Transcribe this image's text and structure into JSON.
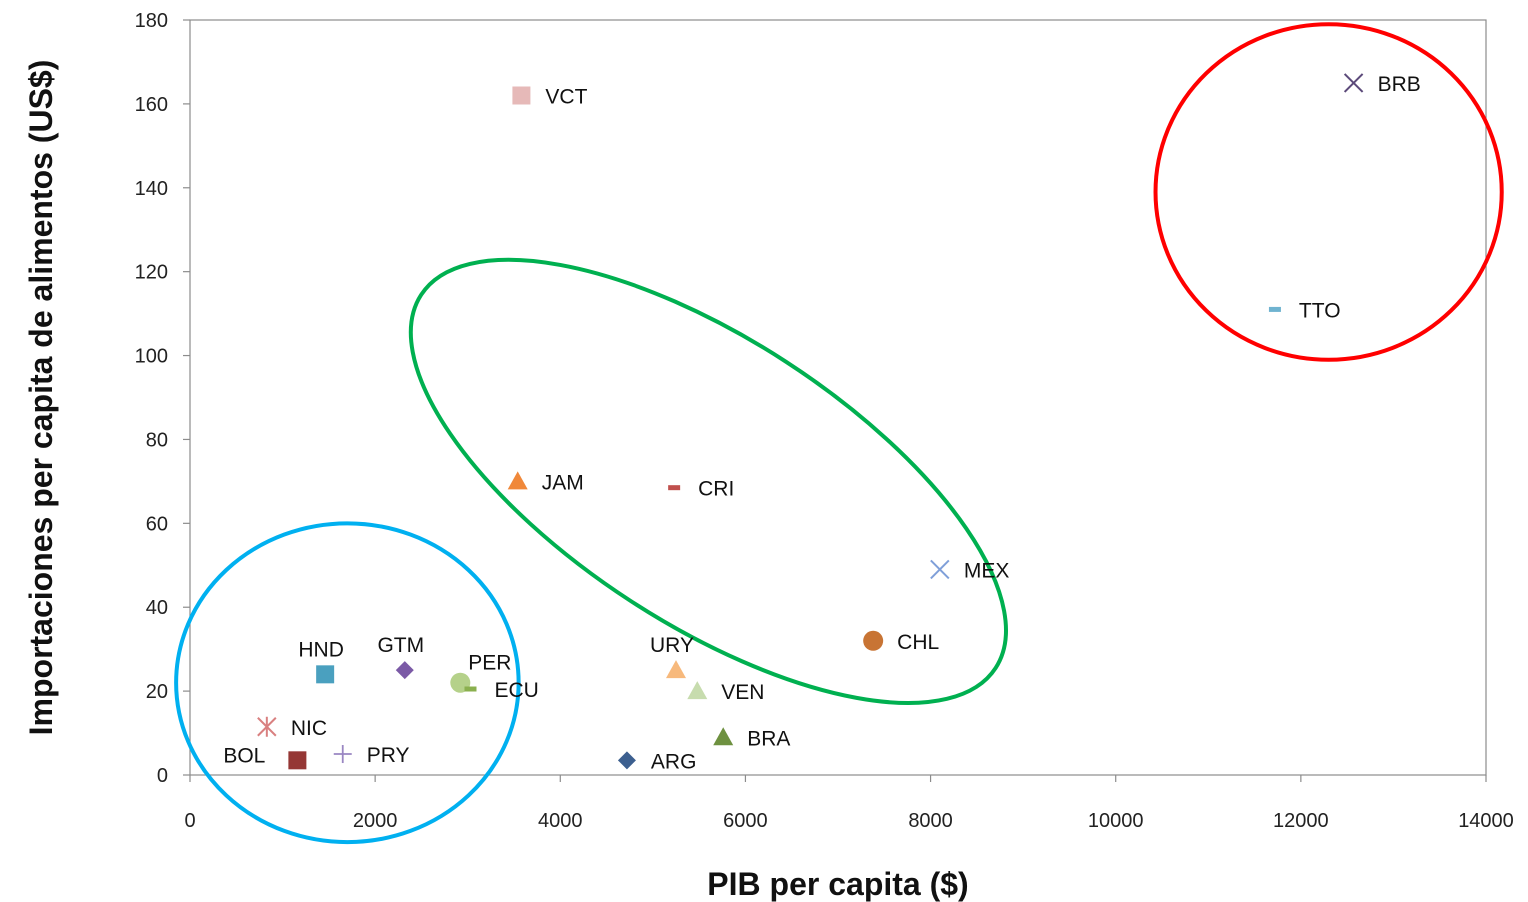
{
  "chart_data": {
    "type": "scatter",
    "xlabel": "PIB per capita ($)",
    "ylabel": "Importaciones per capita de alimentos (US$)",
    "xlim": [
      0,
      14000
    ],
    "ylim": [
      0,
      180
    ],
    "xticks": [
      0,
      2000,
      4000,
      6000,
      8000,
      10000,
      12000,
      14000
    ],
    "yticks": [
      0,
      20,
      40,
      60,
      80,
      100,
      120,
      140,
      160,
      180
    ],
    "grid": false,
    "legend": "none",
    "points": [
      {
        "label": "VCT",
        "x": 3580,
        "y": 162,
        "marker": "square",
        "color": "#e6b9b8",
        "label_pos": "right"
      },
      {
        "label": "BRB",
        "x": 12570,
        "y": 165,
        "marker": "x",
        "color": "#5c4a7a",
        "label_pos": "right"
      },
      {
        "label": "TTO",
        "x": 11720,
        "y": 111,
        "marker": "dash",
        "color": "#6fb3d0",
        "label_pos": "right"
      },
      {
        "label": "JAM",
        "x": 3540,
        "y": 70,
        "marker": "triangle",
        "color": "#f0883a",
        "label_pos": "right"
      },
      {
        "label": "CRI",
        "x": 5230,
        "y": 68.5,
        "marker": "dash",
        "color": "#c0504d",
        "label_pos": "right"
      },
      {
        "label": "MEX",
        "x": 8100,
        "y": 49,
        "marker": "x",
        "color": "#7f9fd9",
        "label_pos": "right"
      },
      {
        "label": "CHL",
        "x": 7380,
        "y": 32,
        "marker": "circle",
        "color": "#c87434",
        "label_pos": "right"
      },
      {
        "label": "URY",
        "x": 5250,
        "y": 25,
        "marker": "triangle",
        "color": "#f7b97c",
        "label_pos": "above"
      },
      {
        "label": "VEN",
        "x": 5480,
        "y": 20,
        "marker": "triangle",
        "color": "#c7dcae",
        "label_pos": "right"
      },
      {
        "label": "BRA",
        "x": 5760,
        "y": 9,
        "marker": "triangle",
        "color": "#6e9140",
        "label_pos": "right"
      },
      {
        "label": "ARG",
        "x": 4720,
        "y": 3.5,
        "marker": "diamond",
        "color": "#3c5f8f",
        "label_pos": "right"
      },
      {
        "label": "HND",
        "x": 1460,
        "y": 24,
        "marker": "square",
        "color": "#4aa0bf",
        "label_pos": "above"
      },
      {
        "label": "GTM",
        "x": 2320,
        "y": 25,
        "marker": "diamond",
        "color": "#7b5aa6",
        "label_pos": "above"
      },
      {
        "label": "PER",
        "x": 2920,
        "y": 22,
        "marker": "circle",
        "color": "#b5d18a",
        "label_pos": "above-right"
      },
      {
        "label": "ECU",
        "x": 3030,
        "y": 20.5,
        "marker": "dash",
        "color": "#8ab04e",
        "label_pos": "right"
      },
      {
        "label": "NIC",
        "x": 830,
        "y": 11.5,
        "marker": "asterisk",
        "color": "#d98080",
        "label_pos": "right"
      },
      {
        "label": "BOL",
        "x": 1160,
        "y": 3.5,
        "marker": "square",
        "color": "#953735",
        "label_pos": "left"
      },
      {
        "label": "PRY",
        "x": 1650,
        "y": 5,
        "marker": "plus",
        "color": "#9a86c2",
        "label_pos": "right"
      }
    ],
    "groups": [
      {
        "color": "#ff0000",
        "cx": 12300,
        "cy": 139,
        "rx": 1870,
        "ry": 40
      },
      {
        "color": "#00b050",
        "cx": 5600,
        "cy": 70,
        "rx": 3700,
        "ry": 34,
        "rotation_deg": 33
      },
      {
        "color": "#00b0f0",
        "cx": 1700,
        "cy": 22,
        "rx": 1850,
        "ry": 38
      }
    ]
  }
}
